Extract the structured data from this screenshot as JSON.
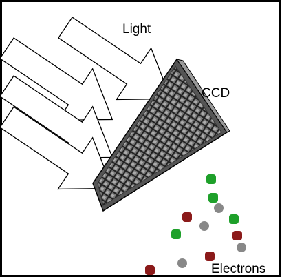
{
  "labels": {
    "light": "Light",
    "ccd": "CCD",
    "electrons": "Electrons"
  }
}
